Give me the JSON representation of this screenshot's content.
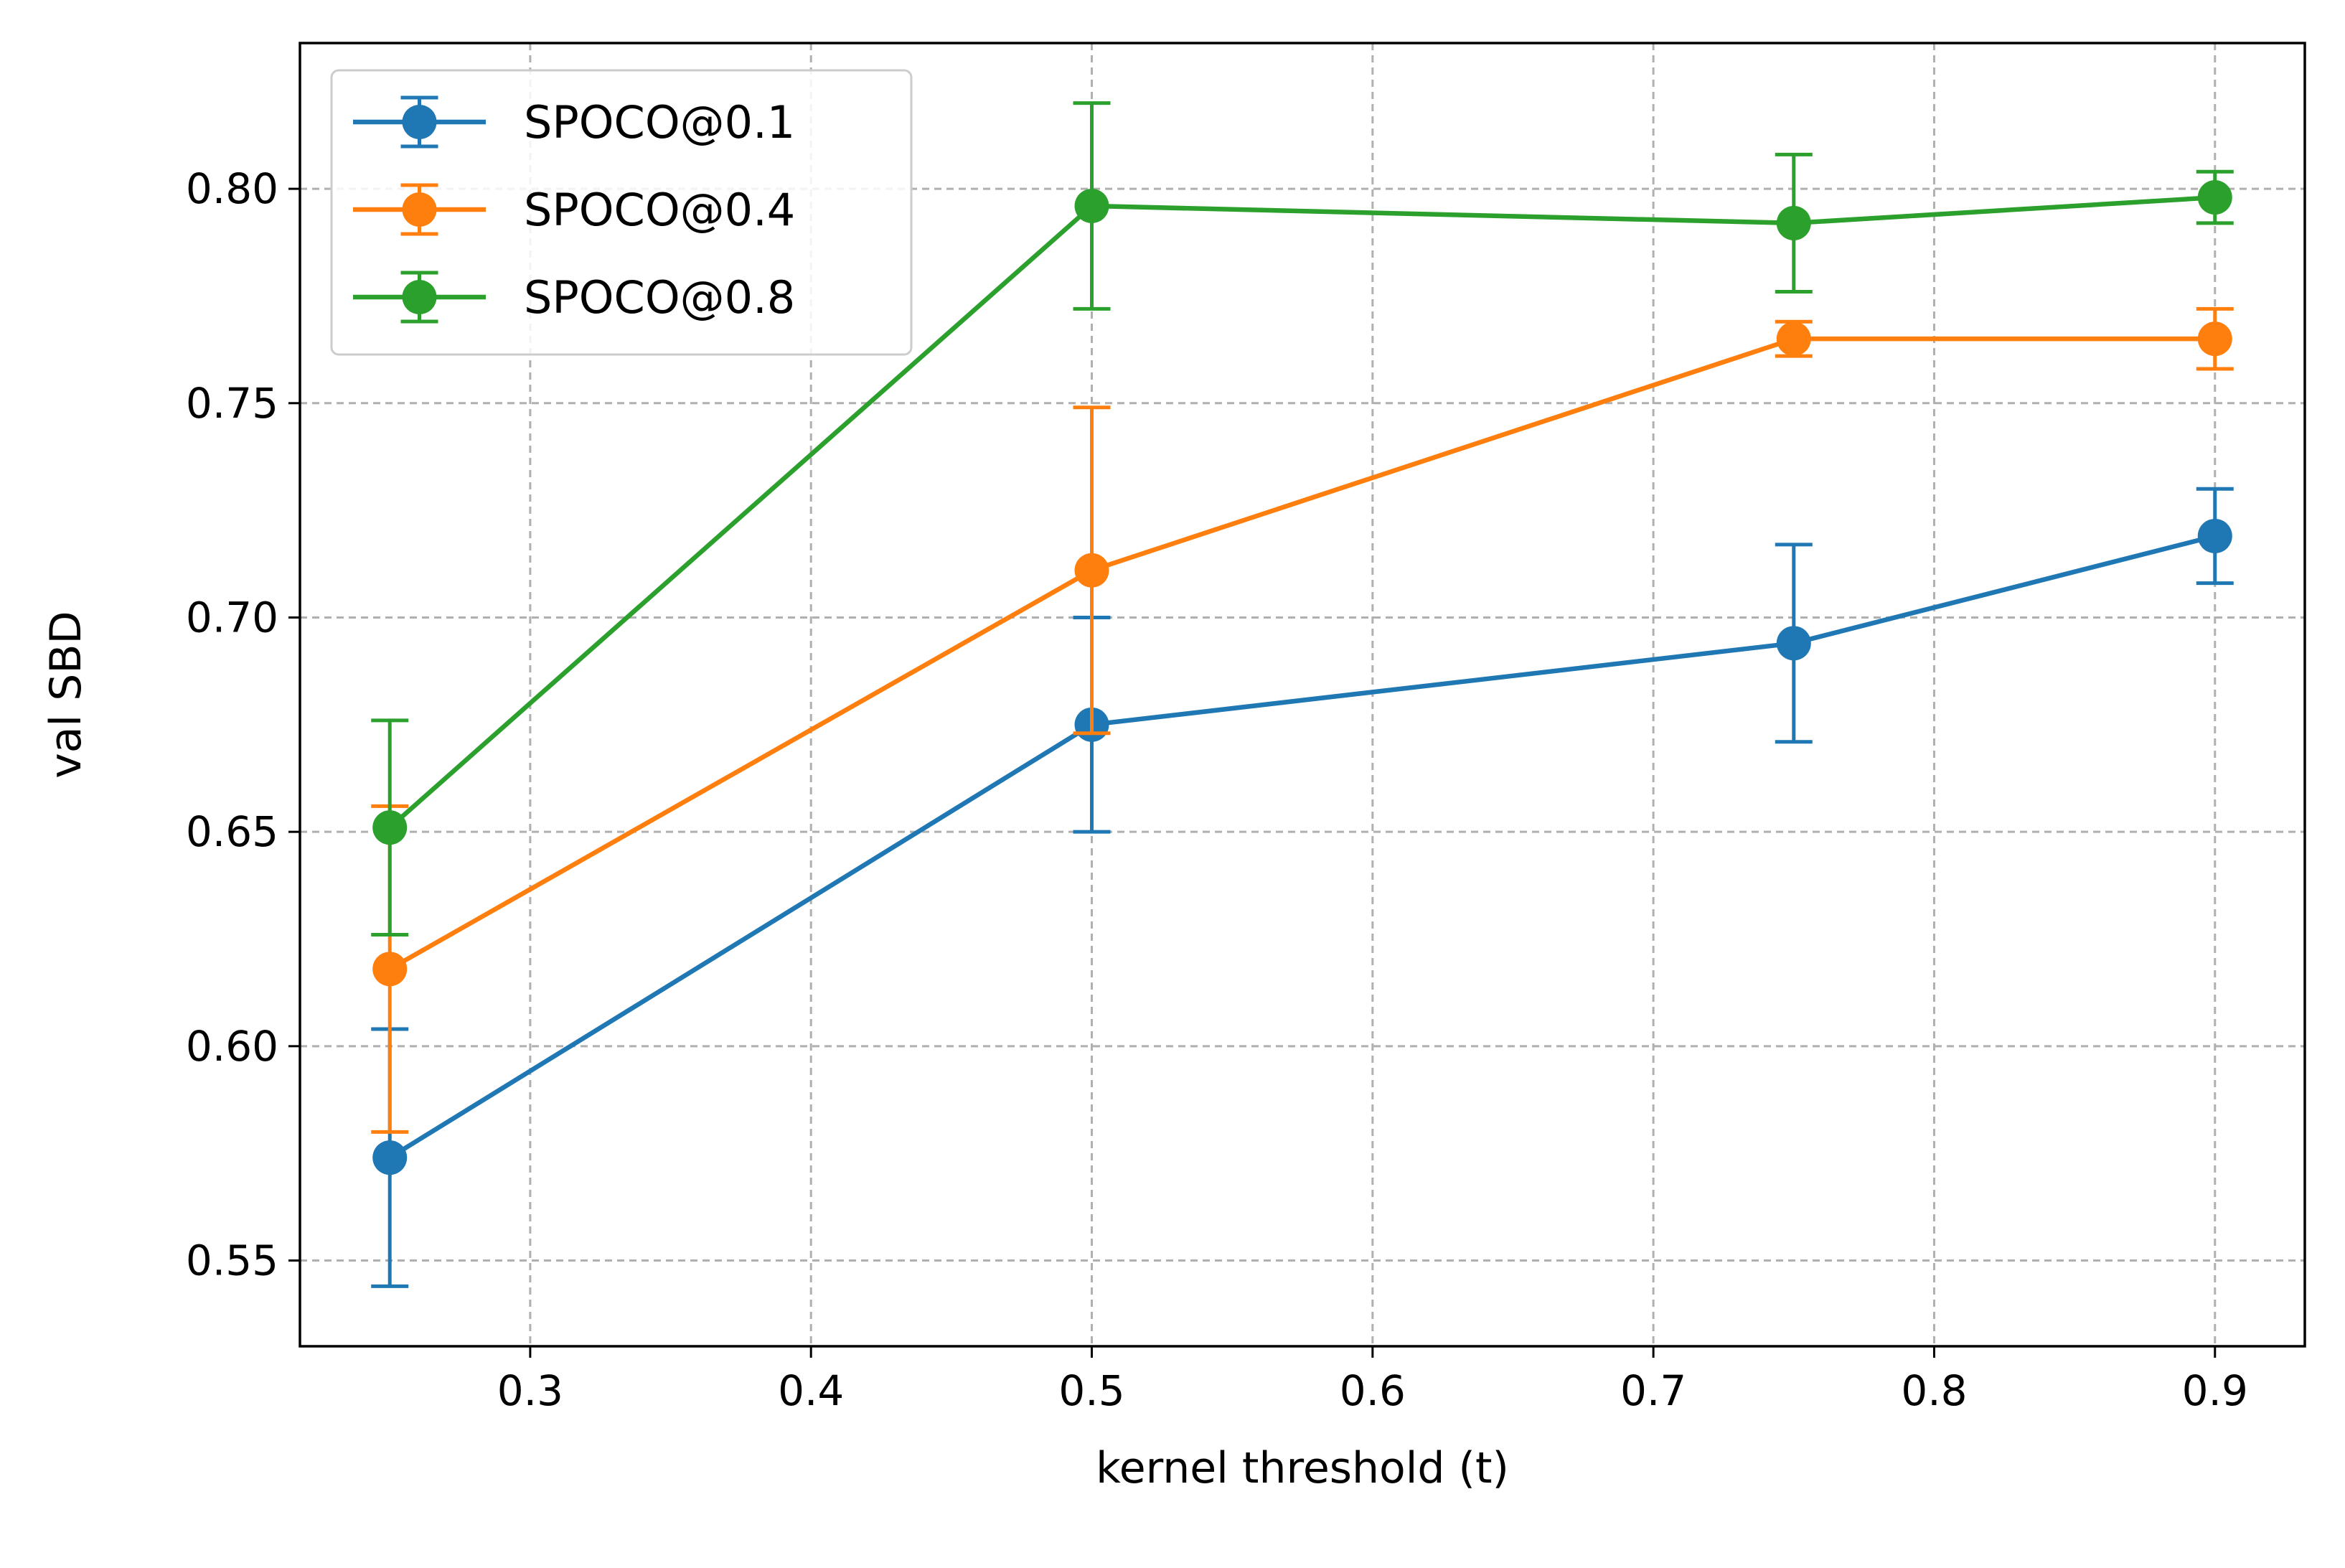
{
  "chart_data": {
    "type": "line",
    "title": "",
    "xlabel": "kernel threshold (t)",
    "ylabel": "val SBD",
    "xlim": [
      0.218,
      0.932
    ],
    "ylim": [
      0.53,
      0.834
    ],
    "grid": true,
    "legend_position": "top-left",
    "x_ticks": [
      0.3,
      0.4,
      0.5,
      0.6,
      0.7,
      0.8,
      0.9
    ],
    "x_tick_labels": [
      "0.3",
      "0.4",
      "0.5",
      "0.6",
      "0.7",
      "0.8",
      "0.9"
    ],
    "y_ticks": [
      0.55,
      0.6,
      0.65,
      0.7,
      0.75,
      0.8
    ],
    "y_tick_labels": [
      "0.55",
      "0.60",
      "0.65",
      "0.70",
      "0.75",
      "0.80"
    ],
    "x": [
      0.25,
      0.5,
      0.75,
      0.9
    ],
    "series": [
      {
        "name": "SPOCO@0.1",
        "color": "#1f77b4",
        "values": [
          0.574,
          0.675,
          0.694,
          0.719
        ],
        "err_low": [
          0.544,
          0.65,
          0.671,
          0.708
        ],
        "err_high": [
          0.604,
          0.7,
          0.717,
          0.73
        ]
      },
      {
        "name": "SPOCO@0.4",
        "color": "#ff7f0e",
        "values": [
          0.618,
          0.711,
          0.765,
          0.765
        ],
        "err_low": [
          0.58,
          0.673,
          0.761,
          0.758
        ],
        "err_high": [
          0.656,
          0.749,
          0.769,
          0.772
        ]
      },
      {
        "name": "SPOCO@0.8",
        "color": "#2ca02c",
        "values": [
          0.651,
          0.796,
          0.792,
          0.798
        ],
        "err_low": [
          0.626,
          0.772,
          0.776,
          0.792
        ],
        "err_high": [
          0.676,
          0.82,
          0.808,
          0.804
        ]
      }
    ]
  }
}
